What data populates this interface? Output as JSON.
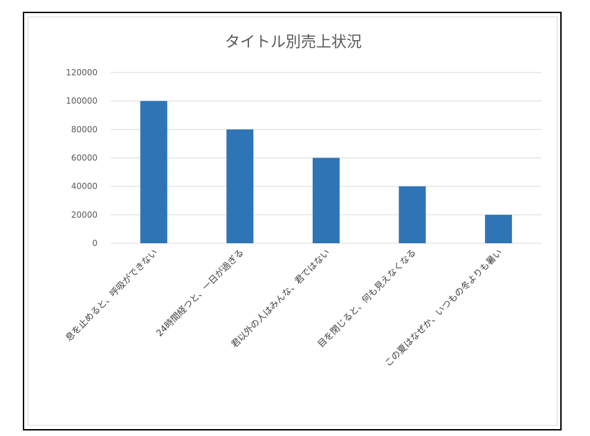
{
  "chart_data": {
    "type": "bar",
    "title": "タイトル別売上状況",
    "categories": [
      "息を止めると、呼吸ができない",
      "24時間経つと、一日が過ぎる",
      "君以外の人はみんな、君ではない",
      "目を閉じると、何も見えなくなる",
      "この夏はなぜか、いつもの冬よりも暑い"
    ],
    "values": [
      100000,
      80000,
      60000,
      40000,
      20000
    ],
    "y_ticks": [
      "0",
      "20000",
      "40000",
      "60000",
      "80000",
      "100000",
      "120000"
    ],
    "ylim": [
      0,
      120000
    ],
    "grid": true,
    "legend": "none",
    "bar_color": "#2e75b6",
    "grid_color": "#d9d9d9"
  }
}
